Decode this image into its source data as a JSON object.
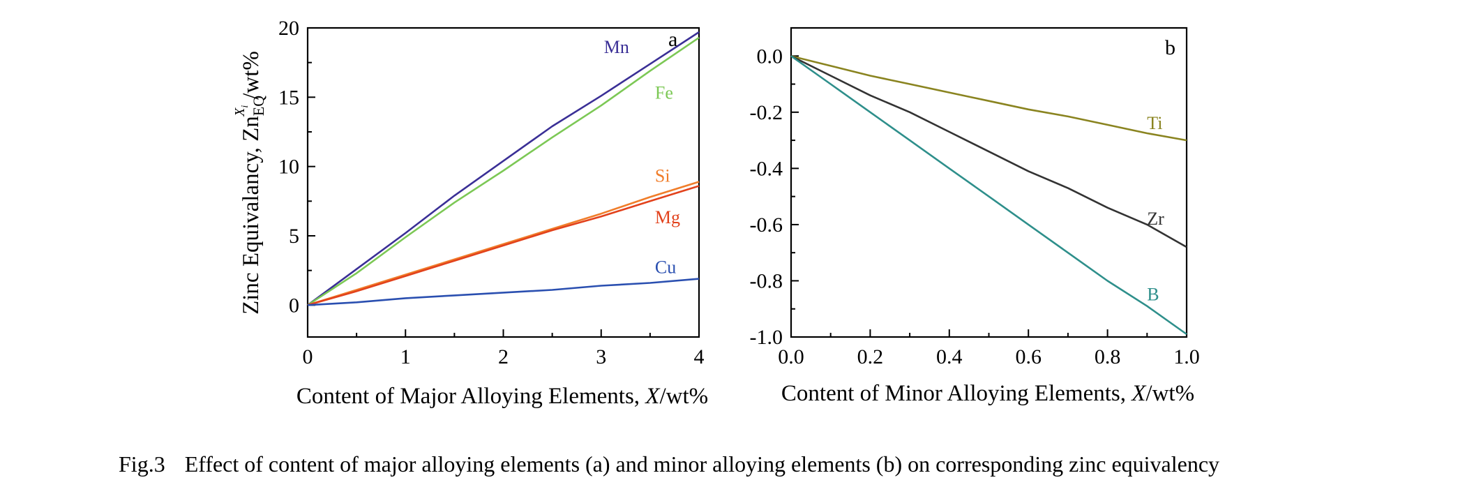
{
  "caption": {
    "figure_number": "Fig.3",
    "text": "Effect of content of major alloying elements (a) and minor alloying elements (b) on corresponding zinc equivalency"
  },
  "chart_data": [
    {
      "type": "line",
      "panel_letter": "a",
      "title": "",
      "xlabel_prefix": "Content of Major Alloying Elements, ",
      "xlabel_var": "X",
      "xlabel_suffix": "/wt%",
      "ylabel_prefix": "Zinc Equivalancy, Zn",
      "ylabel_sub": "EQ",
      "ylabel_sup": "X",
      "ylabel_sup_sub": "i",
      "ylabel_suffix": "/wt%",
      "xlim": [
        0,
        4
      ],
      "ylim": [
        -2.3,
        20
      ],
      "xticks": [
        "0",
        "1",
        "2",
        "3",
        "4"
      ],
      "yticks": [
        "0",
        "5",
        "10",
        "15",
        "20"
      ],
      "grid": false,
      "series": [
        {
          "name": "Mn",
          "color": "#3a2f96",
          "x": [
            0,
            0.5,
            1,
            1.5,
            2,
            2.5,
            3,
            3.5,
            4
          ],
          "y": [
            0,
            2.6,
            5.2,
            7.9,
            10.4,
            12.9,
            15.1,
            17.4,
            19.7
          ]
        },
        {
          "name": "Fe",
          "color": "#7cc855",
          "x": [
            0,
            0.5,
            1,
            1.5,
            2,
            2.5,
            3,
            3.5,
            4
          ],
          "y": [
            0,
            2.3,
            4.9,
            7.4,
            9.7,
            12.1,
            14.4,
            16.9,
            19.3
          ]
        },
        {
          "name": "Si",
          "color": "#f07d2a",
          "x": [
            0,
            0.5,
            1,
            1.5,
            2,
            2.5,
            3,
            3.5,
            4
          ],
          "y": [
            0,
            1.1,
            2.2,
            3.3,
            4.4,
            5.5,
            6.6,
            7.8,
            8.9
          ]
        },
        {
          "name": "Mg",
          "color": "#e2421c",
          "x": [
            0,
            0.5,
            1,
            1.5,
            2,
            2.5,
            3,
            3.5,
            4
          ],
          "y": [
            0,
            1.0,
            2.1,
            3.2,
            4.3,
            5.4,
            6.4,
            7.5,
            8.6
          ]
        },
        {
          "name": "Cu",
          "color": "#2a4fb0",
          "x": [
            0,
            0.5,
            1,
            1.5,
            2,
            2.5,
            3,
            3.5,
            4
          ],
          "y": [
            0,
            0.2,
            0.5,
            0.7,
            0.9,
            1.1,
            1.4,
            1.6,
            1.9
          ]
        }
      ]
    },
    {
      "type": "line",
      "panel_letter": "b",
      "title": "",
      "xlabel_prefix": "Content of Minor Alloying Elements, ",
      "xlabel_var": "X",
      "xlabel_suffix": "/wt%",
      "xlim": [
        0,
        1
      ],
      "ylim": [
        -1.0,
        0.1
      ],
      "xticks": [
        "0.0",
        "0.2",
        "0.4",
        "0.6",
        "0.8",
        "1.0"
      ],
      "yticks": [
        "0.0",
        "-0.2",
        "-0.4",
        "-0.6",
        "-0.8",
        "-1.0"
      ],
      "grid": false,
      "series": [
        {
          "name": "Ti",
          "color": "#8a8420",
          "x": [
            0,
            0.1,
            0.2,
            0.3,
            0.4,
            0.5,
            0.6,
            0.7,
            0.8,
            0.9,
            1.0
          ],
          "y": [
            0,
            -0.035,
            -0.07,
            -0.1,
            -0.13,
            -0.16,
            -0.19,
            -0.215,
            -0.245,
            -0.275,
            -0.3
          ]
        },
        {
          "name": "Zr",
          "color": "#333333",
          "x": [
            0,
            0.1,
            0.2,
            0.3,
            0.4,
            0.5,
            0.6,
            0.7,
            0.8,
            0.9,
            1.0
          ],
          "y": [
            0,
            -0.07,
            -0.14,
            -0.2,
            -0.27,
            -0.34,
            -0.41,
            -0.47,
            -0.54,
            -0.6,
            -0.68
          ]
        },
        {
          "name": "B",
          "color": "#2e8f8b",
          "x": [
            0,
            0.1,
            0.2,
            0.3,
            0.4,
            0.5,
            0.6,
            0.7,
            0.8,
            0.9,
            1.0
          ],
          "y": [
            0,
            -0.1,
            -0.2,
            -0.3,
            -0.4,
            -0.5,
            -0.6,
            -0.7,
            -0.8,
            -0.89,
            -0.99
          ]
        }
      ]
    }
  ]
}
